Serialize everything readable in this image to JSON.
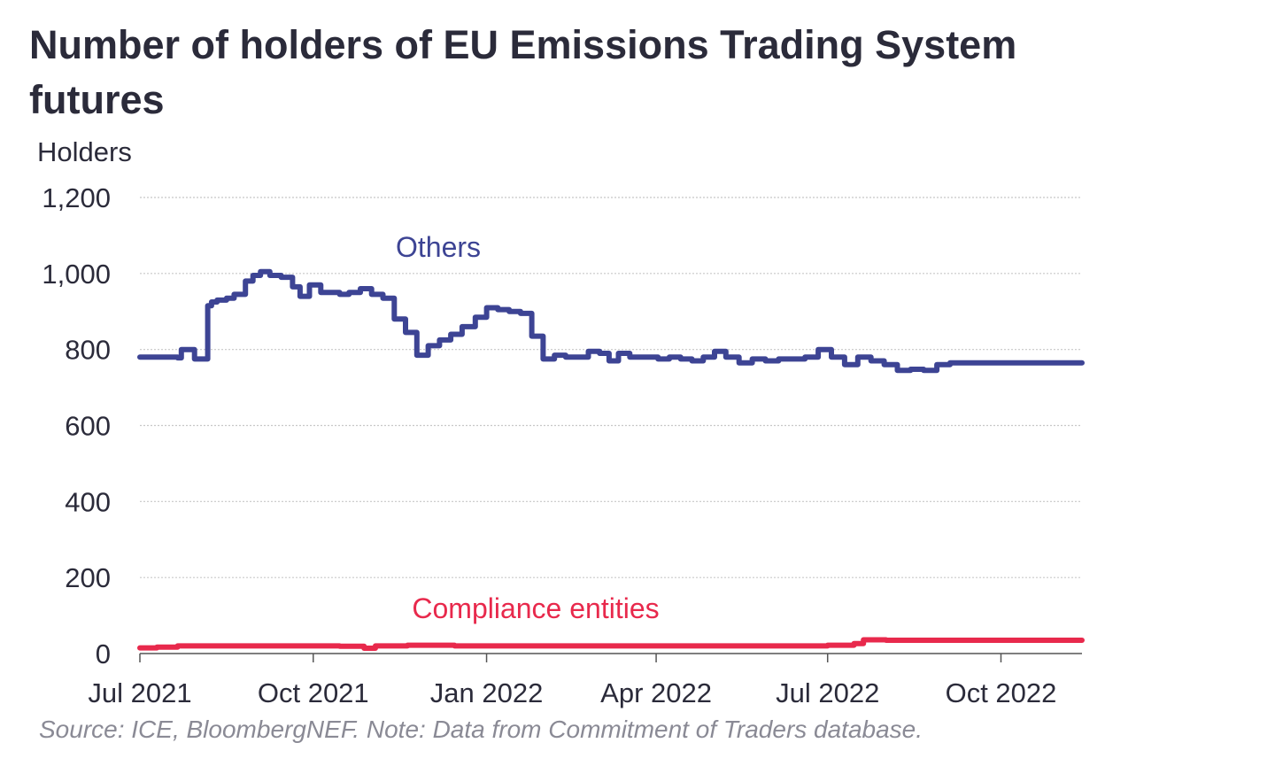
{
  "title": "Number of holders of EU Emissions Trading System futures",
  "source_note": "Source: ICE, BloombergNEF. Note: Data from Commitment of Traders database.",
  "chart_data": {
    "type": "line",
    "title": "Number of holders of EU Emissions Trading System futures",
    "xlabel": "",
    "ylabel": "Holders",
    "ylim": [
      0,
      1200
    ],
    "yticks": [
      0,
      200,
      400,
      600,
      800,
      1000,
      1200
    ],
    "ytick_labels": [
      "0",
      "200",
      "400",
      "600",
      "800",
      "1,000",
      "1,200"
    ],
    "xlim": [
      "2021-07-01",
      "2022-11-13"
    ],
    "xticks": [
      "2021-07-01",
      "2021-10-01",
      "2022-01-01",
      "2022-04-01",
      "2022-07-01",
      "2022-10-01"
    ],
    "xtick_labels": [
      "Jul 2021",
      "Oct 2021",
      "Jan 2022",
      "Apr 2022",
      "Jul 2022",
      "Oct 2022"
    ],
    "grid": "horizontal dotted",
    "legend": "none (direct labels)",
    "colors": {
      "Others": "#3d4494",
      "Compliance entities": "#e8294c",
      "text": "#2b2b3a",
      "grid": "#c8c8c8",
      "axis": "#555555"
    },
    "series": [
      {
        "name": "Others",
        "x": [
          "2021-07-01",
          "2021-07-21",
          "2021-07-23",
          "2021-07-28",
          "2021-07-30",
          "2021-08-06",
          "2021-08-08",
          "2021-08-11",
          "2021-08-16",
          "2021-08-20",
          "2021-08-26",
          "2021-08-30",
          "2021-09-03",
          "2021-09-08",
          "2021-09-14",
          "2021-09-20",
          "2021-09-24",
          "2021-09-29",
          "2021-10-05",
          "2021-10-10",
          "2021-10-15",
          "2021-10-20",
          "2021-10-26",
          "2021-11-01",
          "2021-11-07",
          "2021-11-13",
          "2021-11-19",
          "2021-11-25",
          "2021-12-01",
          "2021-12-07",
          "2021-12-13",
          "2021-12-19",
          "2021-12-26",
          "2022-01-01",
          "2022-01-07",
          "2022-01-13",
          "2022-01-19",
          "2022-01-25",
          "2022-01-31",
          "2022-02-06",
          "2022-02-12",
          "2022-02-18",
          "2022-02-24",
          "2022-03-02",
          "2022-03-07",
          "2022-03-12",
          "2022-03-18",
          "2022-03-26",
          "2022-04-02",
          "2022-04-08",
          "2022-04-14",
          "2022-04-20",
          "2022-04-26",
          "2022-05-02",
          "2022-05-08",
          "2022-05-15",
          "2022-05-22",
          "2022-05-29",
          "2022-06-05",
          "2022-06-12",
          "2022-06-19",
          "2022-06-26",
          "2022-07-03",
          "2022-07-10",
          "2022-07-17",
          "2022-07-24",
          "2022-07-31",
          "2022-08-07",
          "2022-08-14",
          "2022-08-21",
          "2022-08-28",
          "2022-09-04",
          "2022-09-11",
          "2022-09-18",
          "2022-09-25",
          "2022-10-02",
          "2022-10-09",
          "2022-10-16",
          "2022-10-23",
          "2022-11-13"
        ],
        "values": [
          780,
          778,
          800,
          800,
          775,
          915,
          925,
          930,
          935,
          945,
          980,
          995,
          1005,
          995,
          990,
          965,
          940,
          970,
          950,
          950,
          945,
          950,
          960,
          945,
          935,
          880,
          845,
          785,
          810,
          825,
          840,
          860,
          885,
          910,
          905,
          900,
          895,
          835,
          775,
          785,
          780,
          780,
          795,
          790,
          770,
          790,
          780,
          780,
          775,
          780,
          775,
          770,
          780,
          795,
          780,
          765,
          775,
          770,
          775,
          775,
          780,
          800,
          780,
          760,
          780,
          770,
          760,
          745,
          748,
          745,
          760,
          765,
          765,
          765,
          765,
          765,
          765,
          765,
          765,
          765
        ]
      },
      {
        "name": "Compliance entities",
        "x": [
          "2021-07-01",
          "2021-07-10",
          "2021-07-21",
          "2021-08-20",
          "2021-09-20",
          "2021-10-01",
          "2021-10-15",
          "2021-10-28",
          "2021-11-03",
          "2021-11-20",
          "2021-12-15",
          "2022-01-01",
          "2022-02-01",
          "2022-03-01",
          "2022-04-01",
          "2022-05-01",
          "2022-06-01",
          "2022-06-20",
          "2022-07-01",
          "2022-07-15",
          "2022-07-20",
          "2022-08-01",
          "2022-09-01",
          "2022-10-01",
          "2022-11-13"
        ],
        "values": [
          15,
          17,
          20,
          20,
          20,
          20,
          19,
          14,
          20,
          22,
          20,
          20,
          20,
          20,
          20,
          20,
          20,
          20,
          22,
          26,
          36,
          35,
          35,
          35,
          35
        ]
      }
    ]
  }
}
